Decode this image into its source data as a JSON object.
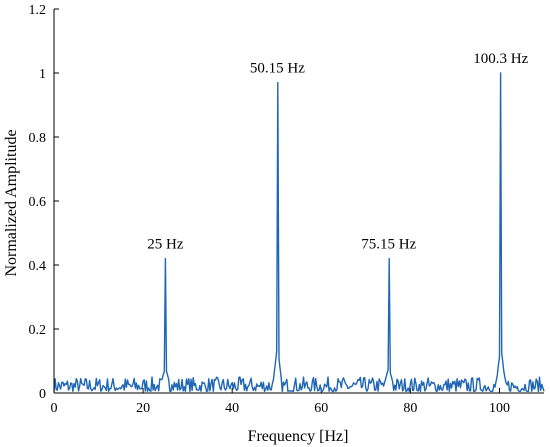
{
  "chart_data": {
    "type": "line",
    "title": "",
    "xlabel": "Frequency [Hz]",
    "ylabel": "Normalized Amplitude",
    "xlim": [
      0,
      110
    ],
    "ylim": [
      0,
      1.2
    ],
    "xticks": [
      0,
      20,
      40,
      60,
      80,
      100
    ],
    "xtick_labels": [
      "0",
      "20",
      "40",
      "60",
      "80",
      "100"
    ],
    "yticks": [
      0,
      0.2,
      0.4,
      0.6,
      0.8,
      1,
      1.2
    ],
    "ytick_labels": [
      "0",
      "0.2",
      "0.4",
      "0.6",
      "0.8",
      "1",
      "1.2"
    ],
    "grid": false,
    "line_color": "#1f66b4",
    "noise_floor": [
      0.005,
      0.05
    ],
    "peaks": [
      {
        "x": 25,
        "y": 0.42,
        "label": "25 Hz"
      },
      {
        "x": 50.15,
        "y": 0.97,
        "label": "50.15 Hz"
      },
      {
        "x": 75.15,
        "y": 0.42,
        "label": "75.15 Hz"
      },
      {
        "x": 100.3,
        "y": 1.0,
        "label": "100.3 Hz"
      }
    ]
  }
}
